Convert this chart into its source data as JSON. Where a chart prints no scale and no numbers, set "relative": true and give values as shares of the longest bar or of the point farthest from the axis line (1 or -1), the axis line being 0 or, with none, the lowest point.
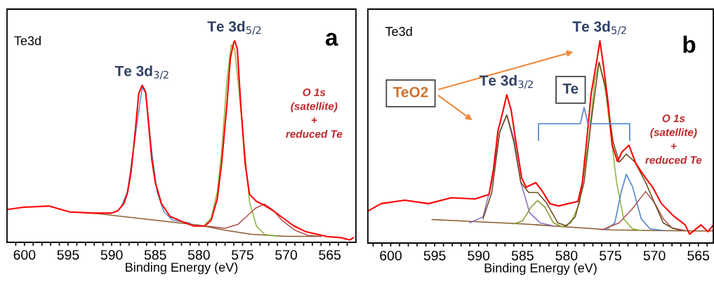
{
  "chart_data": [
    {
      "type": "line",
      "relative": true,
      "xlabel": "Binding Energy (eV)",
      "xlim": [
        602,
        562
      ],
      "xticks": [
        {
          "value": 563,
          "label": null
        },
        {
          "value": 564,
          "label": null
        },
        565,
        {
          "value": 566,
          "label": null
        },
        {
          "value": 567,
          "label": null
        },
        {
          "value": 568,
          "label": null
        },
        {
          "value": 569,
          "label": null
        },
        570,
        {
          "value": 571,
          "label": null
        },
        {
          "value": 572,
          "label": null
        },
        {
          "value": 573,
          "label": null
        },
        {
          "value": 574,
          "label": null
        },
        575,
        {
          "value": 576,
          "label": null
        },
        {
          "value": 577,
          "label": null
        },
        {
          "value": 578,
          "label": null
        },
        {
          "value": 579,
          "label": null
        },
        580,
        {
          "value": 581,
          "label": null
        },
        {
          "value": 582,
          "label": null
        },
        {
          "value": 583,
          "label": null
        },
        {
          "value": 584,
          "label": null
        },
        585,
        {
          "value": 586,
          "label": null
        },
        {
          "value": 587,
          "label": null
        },
        {
          "value": 588,
          "label": null
        },
        {
          "value": 589,
          "label": null
        },
        590,
        {
          "value": 591,
          "label": null
        },
        {
          "value": 592,
          "label": null
        },
        {
          "value": 593,
          "label": null
        },
        {
          "value": 594,
          "label": null
        },
        595,
        {
          "value": 596,
          "label": null
        },
        {
          "value": 597,
          "label": null
        },
        {
          "value": 598,
          "label": null
        },
        {
          "value": 599,
          "label": null
        },
        600,
        {
          "value": 601,
          "label": null
        }
      ],
      "annotations": [
        "Te3d",
        "a",
        {
          "text": "Te 3d$_{3/2}$",
          "x": 586.5,
          "y": 0.779
        },
        {
          "text": "Te 3d$_{5/2}$",
          "x": 575.9,
          "y": 1.0
        },
        "O 1s\n(satellite)\n+\nreduced Te"
      ],
      "series": [
        {
          "color": "#8b5a2b",
          "x": [
            592.1,
            585,
            580,
            577,
            574,
            570,
            566
          ],
          "values": [
            0.145,
            0.11,
            0.085,
            0.06,
            0.04,
            0.03,
            0.03
          ]
        },
        {
          "color": "#5b8fd0",
          "x": [
            589,
            588.2,
            586.5,
            586.1,
            585.4,
            584.8,
            584,
            583,
            581
          ],
          "values": [
            0.17,
            0.25,
            0.77,
            0.74,
            0.45,
            0.25,
            0.15,
            0.11,
            0.095
          ]
        },
        {
          "color": "#8cb43c",
          "x": [
            579.5,
            578.6,
            577.9,
            577.4,
            576.8,
            576.3,
            575.9,
            575.4,
            574.2,
            573.4,
            572.5,
            571
          ],
          "values": [
            0.08,
            0.12,
            0.25,
            0.45,
            0.8,
            0.98,
            0.96,
            0.75,
            0.2,
            0.08,
            0.04,
            0.03
          ]
        },
        {
          "color": "#b05050",
          "x": [
            579,
            577,
            575.5,
            574.5,
            573.5,
            572.5,
            571.5,
            570.5,
            569,
            567.5,
            566
          ],
          "values": [
            0.08,
            0.07,
            0.09,
            0.13,
            0.17,
            0.19,
            0.16,
            0.11,
            0.06,
            0.035,
            0.03
          ]
        },
        {
          "color": "#ff0000",
          "x": [
            602.0,
            600.1,
            597.2,
            594.8,
            592.1,
            590.0,
            589.3,
            588.6,
            588.2,
            587.8,
            587.4,
            586.9,
            586.5,
            586.1,
            585.4,
            585.0,
            584.3,
            583.3,
            581.7,
            580.6,
            579.3,
            578.6,
            577.9,
            577.4,
            576.8,
            576.4,
            576.0,
            575.9,
            575.6,
            575.2,
            574.7,
            574.2,
            573.4,
            572.6,
            571.5,
            570.4,
            569.1,
            567.7,
            565.3,
            563.7,
            562.7,
            562.3
          ],
          "values": [
            0.163,
            0.174,
            0.18,
            0.151,
            0.145,
            0.145,
            0.157,
            0.192,
            0.244,
            0.343,
            0.506,
            0.738,
            0.779,
            0.744,
            0.41,
            0.297,
            0.192,
            0.128,
            0.099,
            0.081,
            0.081,
            0.11,
            0.215,
            0.39,
            0.68,
            0.913,
            0.994,
            1.0,
            0.959,
            0.68,
            0.39,
            0.238,
            0.203,
            0.186,
            0.157,
            0.122,
            0.081,
            0.052,
            0.029,
            0.023,
            0.012,
            0.023
          ]
        }
      ]
    },
    {
      "type": "line",
      "relative": true,
      "xlabel": "Binding Energy (eV)",
      "xlim": [
        602.6,
        563.3
      ],
      "xticks": [
        {
          "value": 564,
          "label": null
        },
        565,
        {
          "value": 566,
          "label": null
        },
        {
          "value": 567,
          "label": null
        },
        {
          "value": 568,
          "label": null
        },
        {
          "value": 569,
          "label": null
        },
        570,
        {
          "value": 571,
          "label": null
        },
        {
          "value": 572,
          "label": null
        },
        {
          "value": 573,
          "label": null
        },
        {
          "value": 574,
          "label": null
        },
        575,
        {
          "value": 576,
          "label": null
        },
        {
          "value": 577,
          "label": null
        },
        {
          "value": 578,
          "label": null
        },
        {
          "value": 579,
          "label": null
        },
        580,
        {
          "value": 581,
          "label": null
        },
        {
          "value": 582,
          "label": null
        },
        {
          "value": 583,
          "label": null
        },
        {
          "value": 584,
          "label": null
        },
        585,
        {
          "value": 586,
          "label": null
        },
        {
          "value": 587,
          "label": null
        },
        {
          "value": 588,
          "label": null
        },
        {
          "value": 589,
          "label": null
        },
        590,
        {
          "value": 591,
          "label": null
        },
        {
          "value": 592,
          "label": null
        },
        {
          "value": 593,
          "label": null
        },
        {
          "value": 594,
          "label": null
        },
        595,
        {
          "value": 596,
          "label": null
        },
        {
          "value": 597,
          "label": null
        },
        {
          "value": 598,
          "label": null
        },
        {
          "value": 599,
          "label": null
        },
        600,
        {
          "value": 601,
          "label": null
        },
        {
          "value": 602,
          "label": null
        }
      ],
      "annotations": [
        "Te3d",
        "b",
        "TeO2",
        "Te",
        {
          "text": "Te 3d$_{3/2}$",
          "x": 586.8,
          "y": 0.733
        },
        {
          "text": "Te 3d$_{5/2}$",
          "x": 576.2,
          "y": 1.0
        },
        "O 1s\n(satellite)\n+\nreduced Te"
      ],
      "series": [
        {
          "color": "#8b5a2b",
          "x": [
            595.3,
            590,
            585,
            580,
            575,
            570,
            565,
            563.3
          ],
          "values": [
            0.116,
            0.105,
            0.095,
            0.08,
            0.065,
            0.062,
            0.06,
            0.06
          ]
        },
        {
          "color": "#8a6cc0",
          "x": [
            591,
            589.5,
            588.5,
            587.6,
            586.8,
            586,
            585.2,
            584.2,
            583,
            581.5
          ],
          "values": [
            0.1,
            0.13,
            0.3,
            0.55,
            0.633,
            0.52,
            0.3,
            0.15,
            0.1,
            0.085
          ]
        },
        {
          "color": "#8a9a30",
          "x": [
            586,
            585,
            584,
            583.3,
            582.5,
            581.5,
            580.5
          ],
          "values": [
            0.095,
            0.11,
            0.18,
            0.21,
            0.18,
            0.1,
            0.08
          ]
        },
        {
          "color": "#8cb43c",
          "x": [
            580.5,
            579.5,
            578.5,
            577.5,
            576.8,
            576.3,
            575.7,
            575,
            574.3,
            573.5,
            572.5,
            571.5
          ],
          "values": [
            0.08,
            0.1,
            0.2,
            0.5,
            0.8,
            0.895,
            0.8,
            0.55,
            0.3,
            0.12,
            0.07,
            0.062
          ]
        },
        {
          "color": "#4a80c8",
          "x": [
            575.5,
            574.5,
            573.8,
            573.2,
            572.5,
            571.5,
            570.5,
            569
          ],
          "values": [
            0.065,
            0.1,
            0.25,
            0.34,
            0.28,
            0.12,
            0.07,
            0.062
          ]
        },
        {
          "color": "#b05050",
          "x": [
            576,
            574,
            572.5,
            571,
            570,
            569,
            568,
            566.5
          ],
          "values": [
            0.065,
            0.1,
            0.17,
            0.255,
            0.2,
            0.12,
            0.075,
            0.062
          ]
        },
        {
          "color": "#6b4a1b",
          "x": [
            589.5,
            588.5,
            587.6,
            586.8,
            586,
            585.2,
            584.3,
            583.3,
            582.3,
            581,
            580,
            579,
            578,
            577.2,
            576.3,
            575.5,
            574.7,
            574,
            573.2,
            572.2,
            571,
            570,
            569,
            568,
            567
          ],
          "values": [
            0.12,
            0.25,
            0.55,
            0.633,
            0.5,
            0.3,
            0.25,
            0.25,
            0.2,
            0.1,
            0.085,
            0.13,
            0.3,
            0.6,
            0.895,
            0.75,
            0.5,
            0.4,
            0.44,
            0.4,
            0.3,
            0.2,
            0.1,
            0.075,
            0.062
          ]
        },
        {
          "color": "#ff0000",
          "x": [
            602.5,
            601.1,
            598.4,
            595.7,
            593.1,
            590.4,
            588.8,
            588.3,
            587.8,
            587.2,
            586.8,
            586.3,
            585.7,
            585.1,
            584.6,
            583.5,
            582.7,
            581.9,
            580.9,
            579.8,
            578.7,
            578.2,
            577.7,
            577.2,
            576.6,
            576.2,
            575.8,
            575.3,
            574.8,
            574.2,
            573.7,
            572.9,
            572.1,
            571.0,
            570.2,
            569.2,
            567.9,
            566.5,
            566.0,
            564.7,
            563.9,
            563.3
          ],
          "values": [
            0.16,
            0.195,
            0.212,
            0.195,
            0.224,
            0.218,
            0.241,
            0.368,
            0.554,
            0.658,
            0.733,
            0.658,
            0.484,
            0.322,
            0.276,
            0.299,
            0.253,
            0.195,
            0.183,
            0.195,
            0.206,
            0.299,
            0.508,
            0.739,
            0.89,
            1.0,
            0.878,
            0.705,
            0.484,
            0.403,
            0.45,
            0.484,
            0.392,
            0.322,
            0.276,
            0.195,
            0.137,
            0.09,
            0.044,
            0.09,
            0.056,
            0.09
          ]
        }
      ]
    }
  ]
}
